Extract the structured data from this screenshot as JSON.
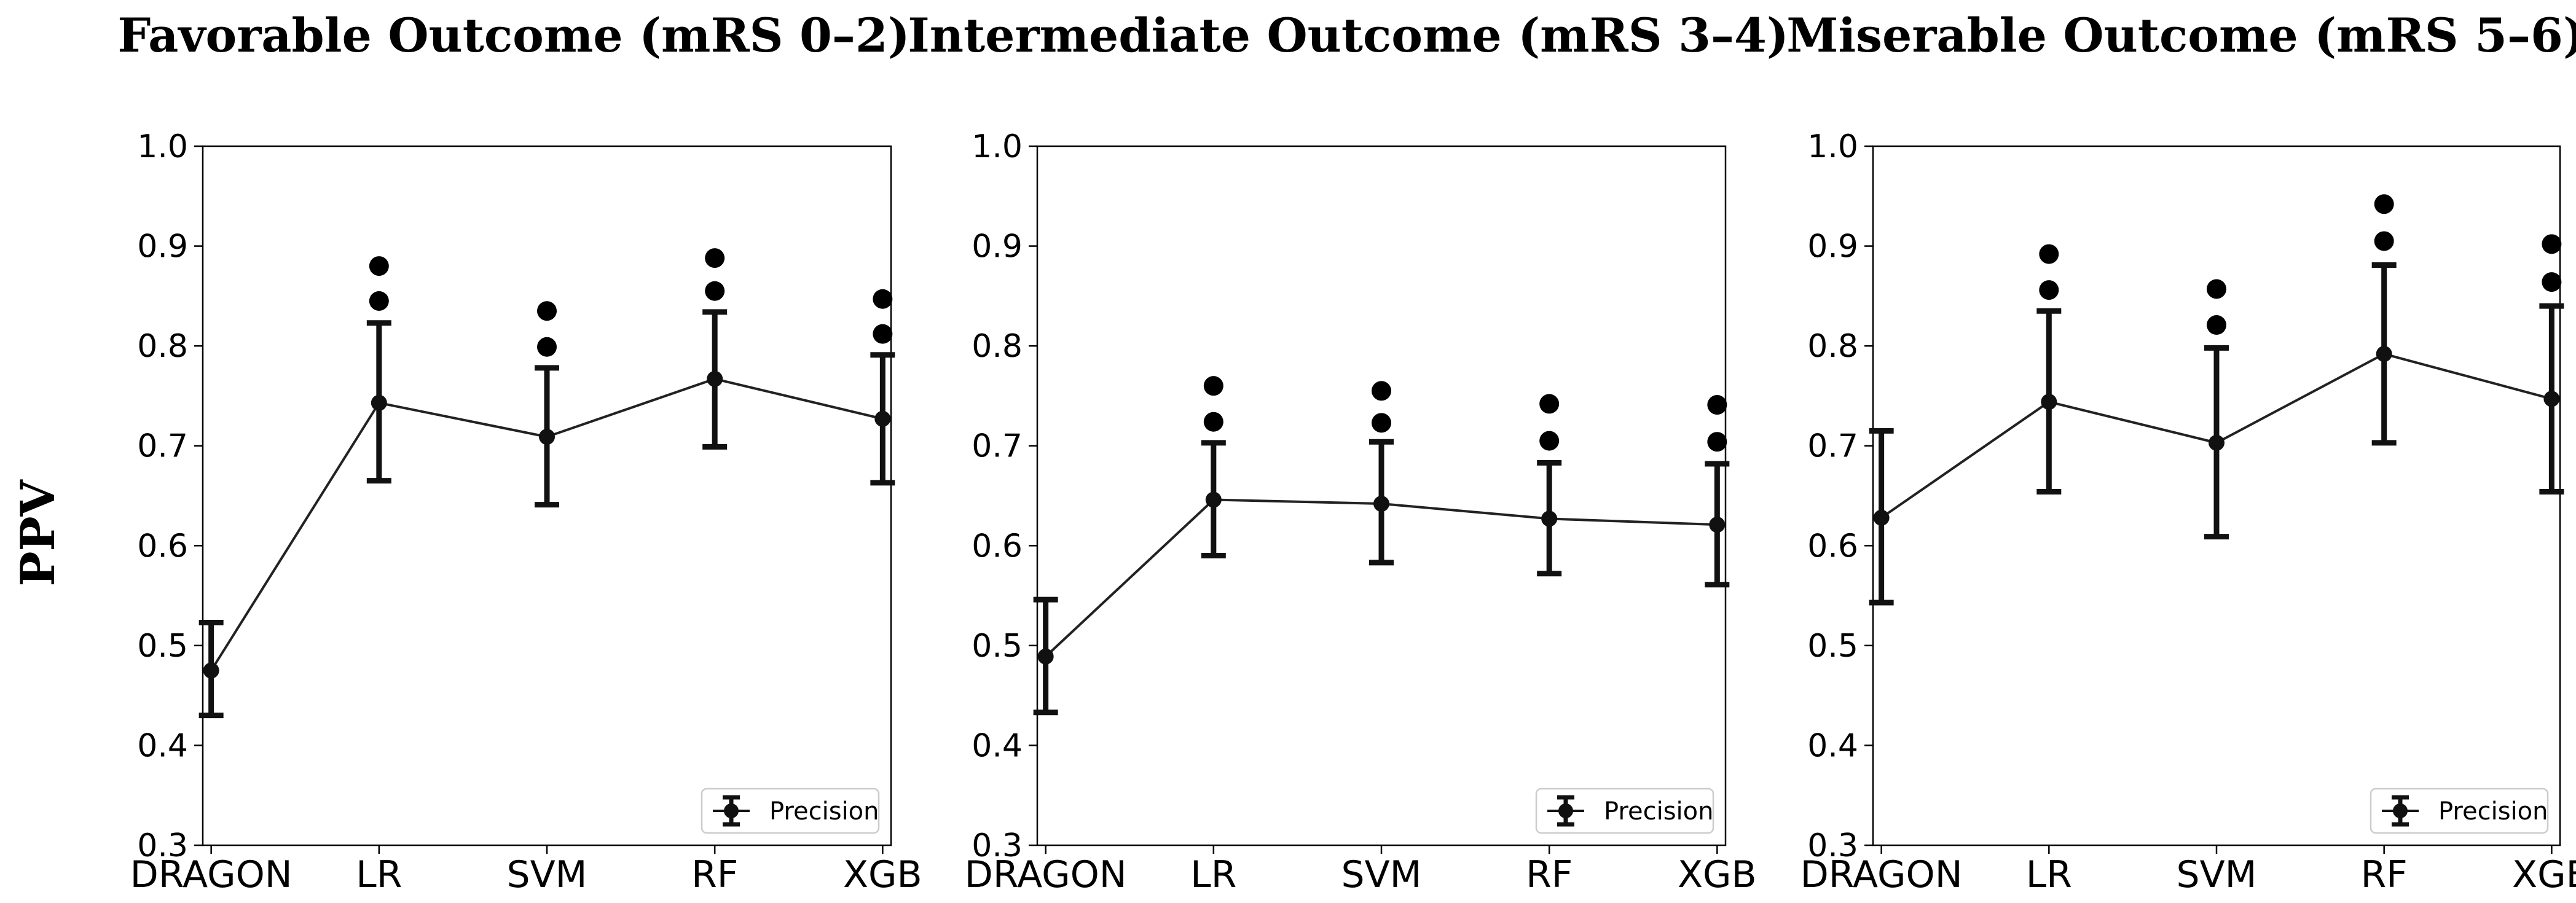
{
  "ylabel": "PPV",
  "chart_data": [
    {
      "type": "line",
      "title": "Favorable Outcome (mRS 0–2)",
      "categories": [
        "DRAGON",
        "LR",
        "SVM",
        "RF",
        "XGB"
      ],
      "ylim": [
        0.3,
        1.0
      ],
      "yticks": [
        "0.3",
        "0.4",
        "0.5",
        "0.6",
        "0.7",
        "0.8",
        "0.9",
        "1.0"
      ],
      "legend": {
        "label": "Precision",
        "position": "lower-right"
      },
      "series": [
        {
          "name": "Precision",
          "values": [
            0.475,
            0.743,
            0.709,
            0.767,
            0.727
          ],
          "ci_low": [
            0.43,
            0.665,
            0.641,
            0.699,
            0.663
          ],
          "ci_high": [
            0.523,
            0.823,
            0.778,
            0.834,
            0.791
          ],
          "outliers": [
            [],
            [
              0.845,
              0.88
            ],
            [
              0.799,
              0.835
            ],
            [
              0.855,
              0.888
            ],
            [
              0.812,
              0.847
            ]
          ]
        }
      ]
    },
    {
      "type": "line",
      "title": "Intermediate Outcome (mRS 3–4)",
      "categories": [
        "DRAGON",
        "LR",
        "SVM",
        "RF",
        "XGB"
      ],
      "ylim": [
        0.3,
        1.0
      ],
      "yticks": [
        "0.3",
        "0.4",
        "0.5",
        "0.6",
        "0.7",
        "0.8",
        "0.9",
        "1.0"
      ],
      "legend": {
        "label": "Precision",
        "position": "lower-right"
      },
      "series": [
        {
          "name": "Precision",
          "values": [
            0.489,
            0.646,
            0.642,
            0.627,
            0.621
          ],
          "ci_low": [
            0.433,
            0.59,
            0.583,
            0.572,
            0.561
          ],
          "ci_high": [
            0.546,
            0.703,
            0.704,
            0.683,
            0.682
          ],
          "outliers": [
            [],
            [
              0.724,
              0.76
            ],
            [
              0.723,
              0.755
            ],
            [
              0.705,
              0.742
            ],
            [
              0.704,
              0.741
            ]
          ]
        }
      ]
    },
    {
      "type": "line",
      "title": "Miserable Outcome (mRS 5–6)",
      "categories": [
        "DRAGON",
        "LR",
        "SVM",
        "RF",
        "XGB"
      ],
      "ylim": [
        0.3,
        1.0
      ],
      "yticks": [
        "0.3",
        "0.4",
        "0.5",
        "0.6",
        "0.7",
        "0.8",
        "0.9",
        "1.0"
      ],
      "legend": {
        "label": "Precision",
        "position": "lower-right"
      },
      "series": [
        {
          "name": "Precision",
          "values": [
            0.628,
            0.744,
            0.703,
            0.792,
            0.747
          ],
          "ci_low": [
            0.543,
            0.654,
            0.609,
            0.703,
            0.654
          ],
          "ci_high": [
            0.715,
            0.835,
            0.798,
            0.881,
            0.84
          ],
          "outliers": [
            [],
            [
              0.856,
              0.892
            ],
            [
              0.821,
              0.857
            ],
            [
              0.905,
              0.942
            ],
            [
              0.864,
              0.902
            ]
          ]
        }
      ]
    }
  ]
}
